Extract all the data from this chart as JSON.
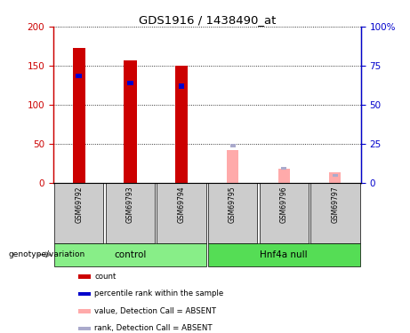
{
  "title": "GDS1916 / 1438490_at",
  "samples": [
    "GSM69792",
    "GSM69793",
    "GSM69794",
    "GSM69795",
    "GSM69796",
    "GSM69797"
  ],
  "groups": [
    "control",
    "control",
    "control",
    "Hnf4a null",
    "Hnf4a null",
    "Hnf4a null"
  ],
  "red_values": [
    173,
    157,
    150,
    0,
    0,
    0
  ],
  "blue_values_left": [
    137,
    128,
    124,
    0,
    0,
    0
  ],
  "pink_values": [
    0,
    0,
    0,
    42,
    18,
    14
  ],
  "lavender_values_left": [
    0,
    0,
    0,
    48,
    19,
    10
  ],
  "ylim_left": [
    0,
    200
  ],
  "ylim_right": [
    0,
    100
  ],
  "yticks_left": [
    0,
    50,
    100,
    150,
    200
  ],
  "ytick_labels_left": [
    "0",
    "50",
    "100",
    "150",
    "200"
  ],
  "yticks_right": [
    0,
    25,
    50,
    75,
    100
  ],
  "ytick_labels_right": [
    "0",
    "25",
    "50",
    "75",
    "100%"
  ],
  "color_red": "#cc0000",
  "color_blue": "#0000cc",
  "color_pink": "#ffaaaa",
  "color_lavender": "#aaaacc",
  "color_control_bg": "#88ee88",
  "color_hnf4a_bg": "#55dd55",
  "color_sample_bg": "#cccccc",
  "legend_items": [
    {
      "label": "count",
      "color": "#cc0000"
    },
    {
      "label": "percentile rank within the sample",
      "color": "#0000cc"
    },
    {
      "label": "value, Detection Call = ABSENT",
      "color": "#ffaaaa"
    },
    {
      "label": "rank, Detection Call = ABSENT",
      "color": "#aaaacc"
    }
  ]
}
